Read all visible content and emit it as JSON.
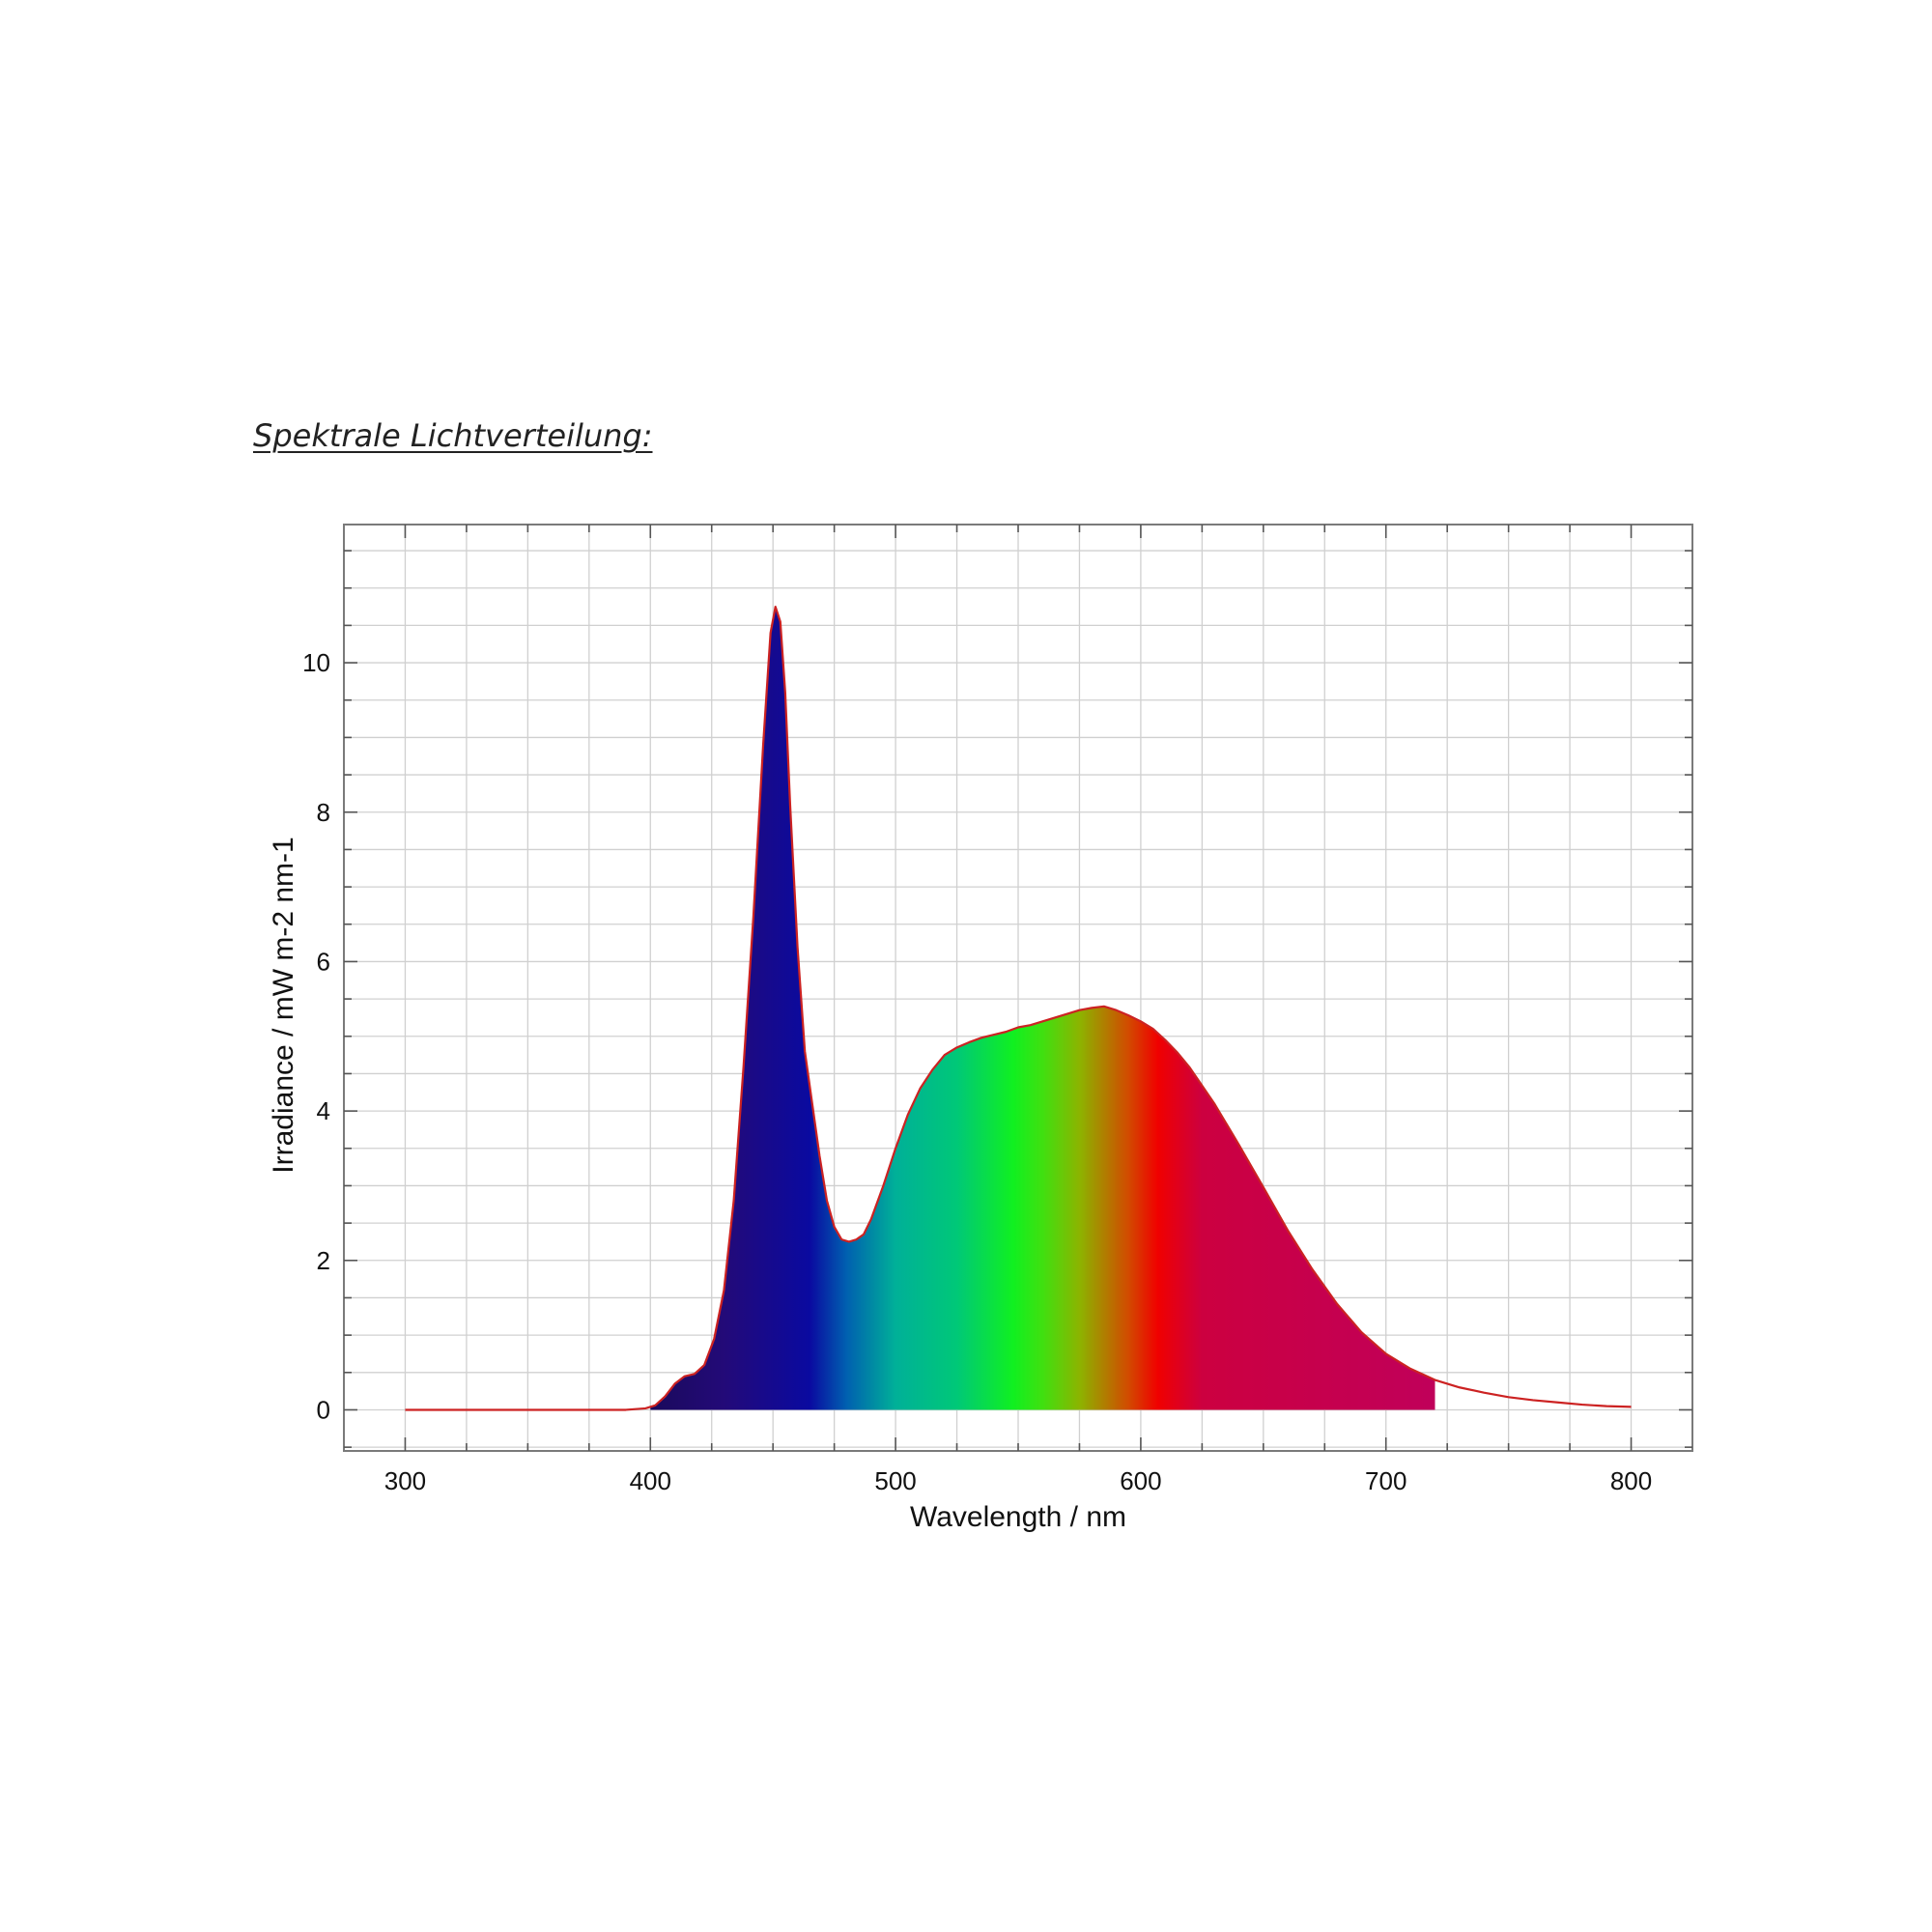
{
  "heading": "Spektrale Lichtverteilung:",
  "chart_data": {
    "type": "area",
    "title": "",
    "xlabel": "Wavelength / nm",
    "ylabel": "Irradiance / mW m-2 nm-1",
    "xlim": [
      275,
      825
    ],
    "ylim": [
      -0.55,
      11.85
    ],
    "xticks": [
      300,
      400,
      500,
      600,
      700,
      800
    ],
    "yticks": [
      0,
      2,
      4,
      6,
      8,
      10
    ],
    "grid": true,
    "filled_range": [
      400,
      720
    ],
    "line_color": "#cc2222",
    "fill_gradient": [
      {
        "x": 400,
        "color": "#1a0a5c"
      },
      {
        "x": 430,
        "color": "#230a78"
      },
      {
        "x": 465,
        "color": "#0a0aa0"
      },
      {
        "x": 480,
        "color": "#0060b0"
      },
      {
        "x": 500,
        "color": "#00b098"
      },
      {
        "x": 525,
        "color": "#00c878"
      },
      {
        "x": 548,
        "color": "#10f020"
      },
      {
        "x": 560,
        "color": "#40e010"
      },
      {
        "x": 575,
        "color": "#8cb400"
      },
      {
        "x": 595,
        "color": "#d24a00"
      },
      {
        "x": 607,
        "color": "#f00000"
      },
      {
        "x": 625,
        "color": "#cc0040"
      },
      {
        "x": 720,
        "color": "#c0005a"
      }
    ],
    "series": [
      {
        "x": [
          300,
          350,
          390,
          398,
          402,
          406,
          410,
          414,
          418,
          422,
          426,
          430,
          434,
          438,
          442,
          446,
          449,
          451,
          453,
          455,
          457,
          460,
          463,
          466,
          469,
          472,
          475,
          478,
          481,
          484,
          487,
          490,
          495,
          500,
          505,
          510,
          515,
          520,
          525,
          530,
          535,
          540,
          545,
          550,
          555,
          560,
          565,
          570,
          575,
          580,
          585,
          590,
          595,
          600,
          605,
          610,
          615,
          620,
          630,
          640,
          650,
          660,
          670,
          680,
          690,
          700,
          710,
          720,
          730,
          740,
          750,
          760,
          770,
          780,
          790,
          800
        ],
        "y": [
          0.0,
          0.0,
          0.0,
          0.02,
          0.06,
          0.18,
          0.35,
          0.45,
          0.48,
          0.6,
          0.95,
          1.6,
          2.8,
          4.6,
          6.6,
          8.9,
          10.4,
          10.75,
          10.55,
          9.6,
          8.1,
          6.2,
          4.8,
          4.1,
          3.4,
          2.8,
          2.45,
          2.28,
          2.25,
          2.28,
          2.35,
          2.55,
          3.0,
          3.5,
          3.95,
          4.3,
          4.55,
          4.75,
          4.85,
          4.92,
          4.98,
          5.02,
          5.06,
          5.12,
          5.15,
          5.2,
          5.25,
          5.3,
          5.35,
          5.38,
          5.4,
          5.35,
          5.28,
          5.2,
          5.1,
          4.95,
          4.78,
          4.58,
          4.1,
          3.55,
          2.98,
          2.4,
          1.88,
          1.42,
          1.04,
          0.75,
          0.55,
          0.4,
          0.3,
          0.23,
          0.17,
          0.13,
          0.1,
          0.07,
          0.05,
          0.04
        ]
      }
    ]
  }
}
